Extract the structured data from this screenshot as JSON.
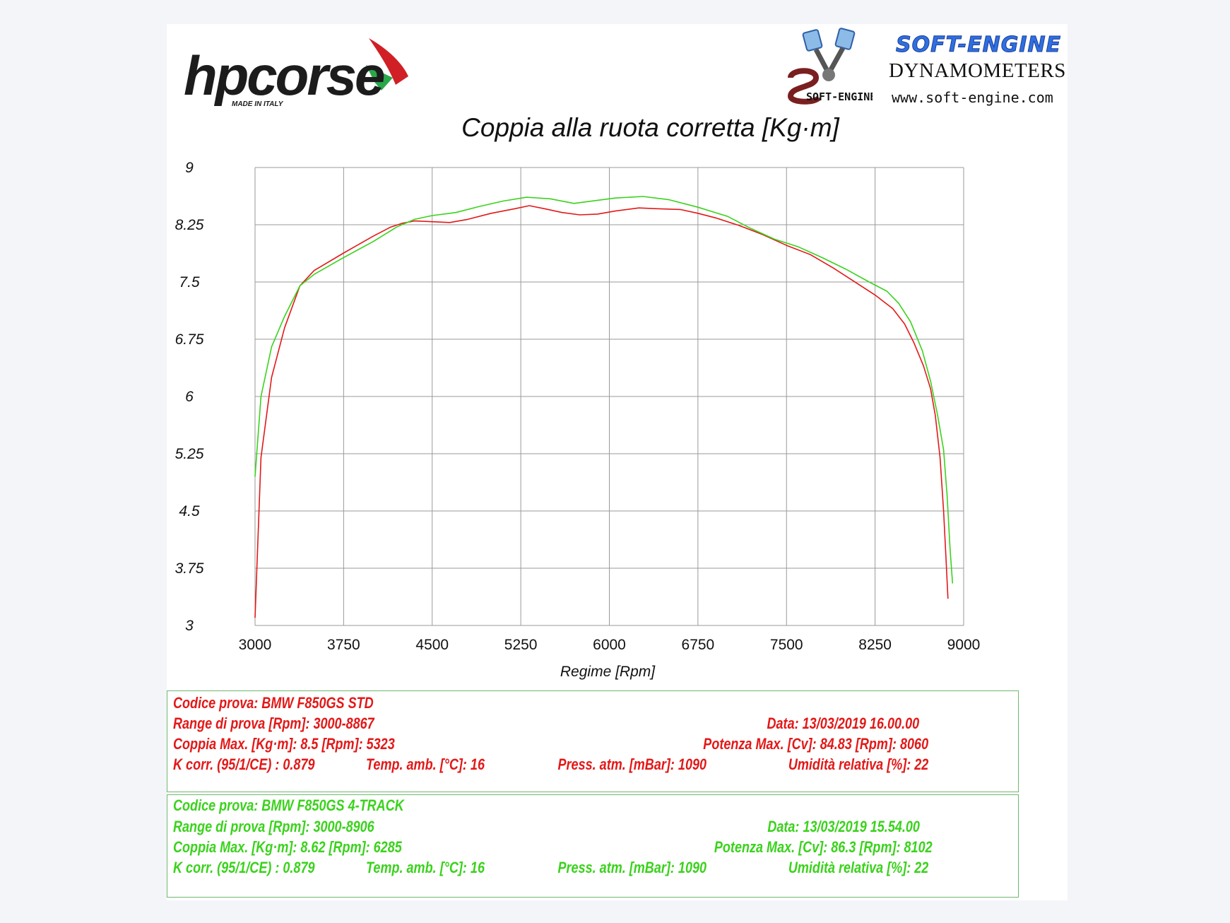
{
  "header": {
    "brand_left": "hpcorse",
    "brand_left_tagline": "MADE IN ITALY",
    "brand_right_name": "SOFT-ENGINE",
    "brand_right_line2": "DYNAMOMETERS",
    "brand_right_url": "www.soft-engine.com",
    "brand_right_logo_text": "SOFT-ENGINE"
  },
  "colors": {
    "std": "#e31818",
    "four_track": "#3ad21c",
    "grid": "#9a9a9a",
    "box_border": "#6fb86f"
  },
  "chart_data": {
    "type": "line",
    "title": "Coppia alla ruota corretta [Kg·m]",
    "xlabel": "Regime [Rpm]",
    "ylabel": "",
    "xlim": [
      3000,
      9000
    ],
    "ylim": [
      3,
      9
    ],
    "x_ticks": [
      "3000",
      "3750",
      "4500",
      "5250",
      "6000",
      "6750",
      "7500",
      "8250",
      "9000"
    ],
    "y_ticks": [
      "9",
      "8.25",
      "7.5",
      "6.75",
      "6",
      "5.25",
      "4.5",
      "3.75",
      "3"
    ],
    "grid": true,
    "series": [
      {
        "key": "std",
        "points": [
          [
            3000,
            3.1
          ],
          [
            3050,
            5.2
          ],
          [
            3140,
            6.25
          ],
          [
            3250,
            6.9
          ],
          [
            3380,
            7.45
          ],
          [
            3500,
            7.65
          ],
          [
            3750,
            7.88
          ],
          [
            4000,
            8.1
          ],
          [
            4150,
            8.22
          ],
          [
            4250,
            8.27
          ],
          [
            4350,
            8.3
          ],
          [
            4500,
            8.29
          ],
          [
            4650,
            8.28
          ],
          [
            4800,
            8.32
          ],
          [
            5000,
            8.4
          ],
          [
            5200,
            8.46
          ],
          [
            5323,
            8.5
          ],
          [
            5450,
            8.46
          ],
          [
            5600,
            8.41
          ],
          [
            5750,
            8.38
          ],
          [
            5900,
            8.39
          ],
          [
            6050,
            8.43
          ],
          [
            6250,
            8.47
          ],
          [
            6400,
            8.46
          ],
          [
            6600,
            8.45
          ],
          [
            6750,
            8.4
          ],
          [
            6900,
            8.34
          ],
          [
            7100,
            8.24
          ],
          [
            7300,
            8.12
          ],
          [
            7500,
            7.98
          ],
          [
            7700,
            7.86
          ],
          [
            7900,
            7.68
          ],
          [
            8100,
            7.48
          ],
          [
            8250,
            7.33
          ],
          [
            8400,
            7.15
          ],
          [
            8500,
            6.95
          ],
          [
            8580,
            6.7
          ],
          [
            8660,
            6.4
          ],
          [
            8720,
            6.1
          ],
          [
            8760,
            5.75
          ],
          [
            8800,
            5.2
          ],
          [
            8830,
            4.5
          ],
          [
            8850,
            3.9
          ],
          [
            8867,
            3.35
          ]
        ]
      },
      {
        "key": "four_track",
        "points": [
          [
            3000,
            4.95
          ],
          [
            3050,
            6.0
          ],
          [
            3140,
            6.65
          ],
          [
            3250,
            7.05
          ],
          [
            3380,
            7.45
          ],
          [
            3500,
            7.6
          ],
          [
            3750,
            7.82
          ],
          [
            4000,
            8.03
          ],
          [
            4200,
            8.22
          ],
          [
            4350,
            8.32
          ],
          [
            4500,
            8.37
          ],
          [
            4700,
            8.41
          ],
          [
            4900,
            8.49
          ],
          [
            5100,
            8.56
          ],
          [
            5300,
            8.61
          ],
          [
            5500,
            8.59
          ],
          [
            5700,
            8.53
          ],
          [
            5900,
            8.57
          ],
          [
            6050,
            8.6
          ],
          [
            6285,
            8.62
          ],
          [
            6500,
            8.58
          ],
          [
            6750,
            8.48
          ],
          [
            7000,
            8.36
          ],
          [
            7200,
            8.2
          ],
          [
            7400,
            8.06
          ],
          [
            7600,
            7.96
          ],
          [
            7800,
            7.82
          ],
          [
            8000,
            7.67
          ],
          [
            8200,
            7.5
          ],
          [
            8350,
            7.38
          ],
          [
            8450,
            7.22
          ],
          [
            8550,
            6.98
          ],
          [
            8650,
            6.6
          ],
          [
            8720,
            6.2
          ],
          [
            8780,
            5.75
          ],
          [
            8830,
            5.3
          ],
          [
            8860,
            4.7
          ],
          [
            8885,
            4.0
          ],
          [
            8906,
            3.55
          ]
        ]
      }
    ]
  },
  "info_std": {
    "codice": "Codice prova: BMW F850GS STD",
    "range": "Range di prova [Rpm]: 3000-8867",
    "data": "Data: 13/03/2019  16.00.00",
    "coppia": "Coppia Max. [Kg·m]: 8.5  [Rpm]: 5323",
    "potenza": "Potenza Max. [Cv]: 84.83  [Rpm]: 8060",
    "kcorr": "K corr. (95/1/CE) : 0.879",
    "temp": "Temp. amb. [°C]: 16",
    "press": "Press. atm. [mBar]: 1090",
    "umidita": "Umidità relativa [%]: 22"
  },
  "info_4track": {
    "codice": "Codice prova: BMW F850GS 4-TRACK",
    "range": "Range di prova [Rpm]: 3000-8906",
    "data": "Data: 13/03/2019  15.54.00",
    "coppia": "Coppia Max. [Kg·m]: 8.62  [Rpm]: 6285",
    "potenza": "Potenza Max. [Cv]: 86.3  [Rpm]: 8102",
    "kcorr": "K corr. (95/1/CE) : 0.879",
    "temp": "Temp. amb. [°C]: 16",
    "press": "Press. atm. [mBar]: 1090",
    "umidita": "Umidità relativa [%]: 22"
  }
}
